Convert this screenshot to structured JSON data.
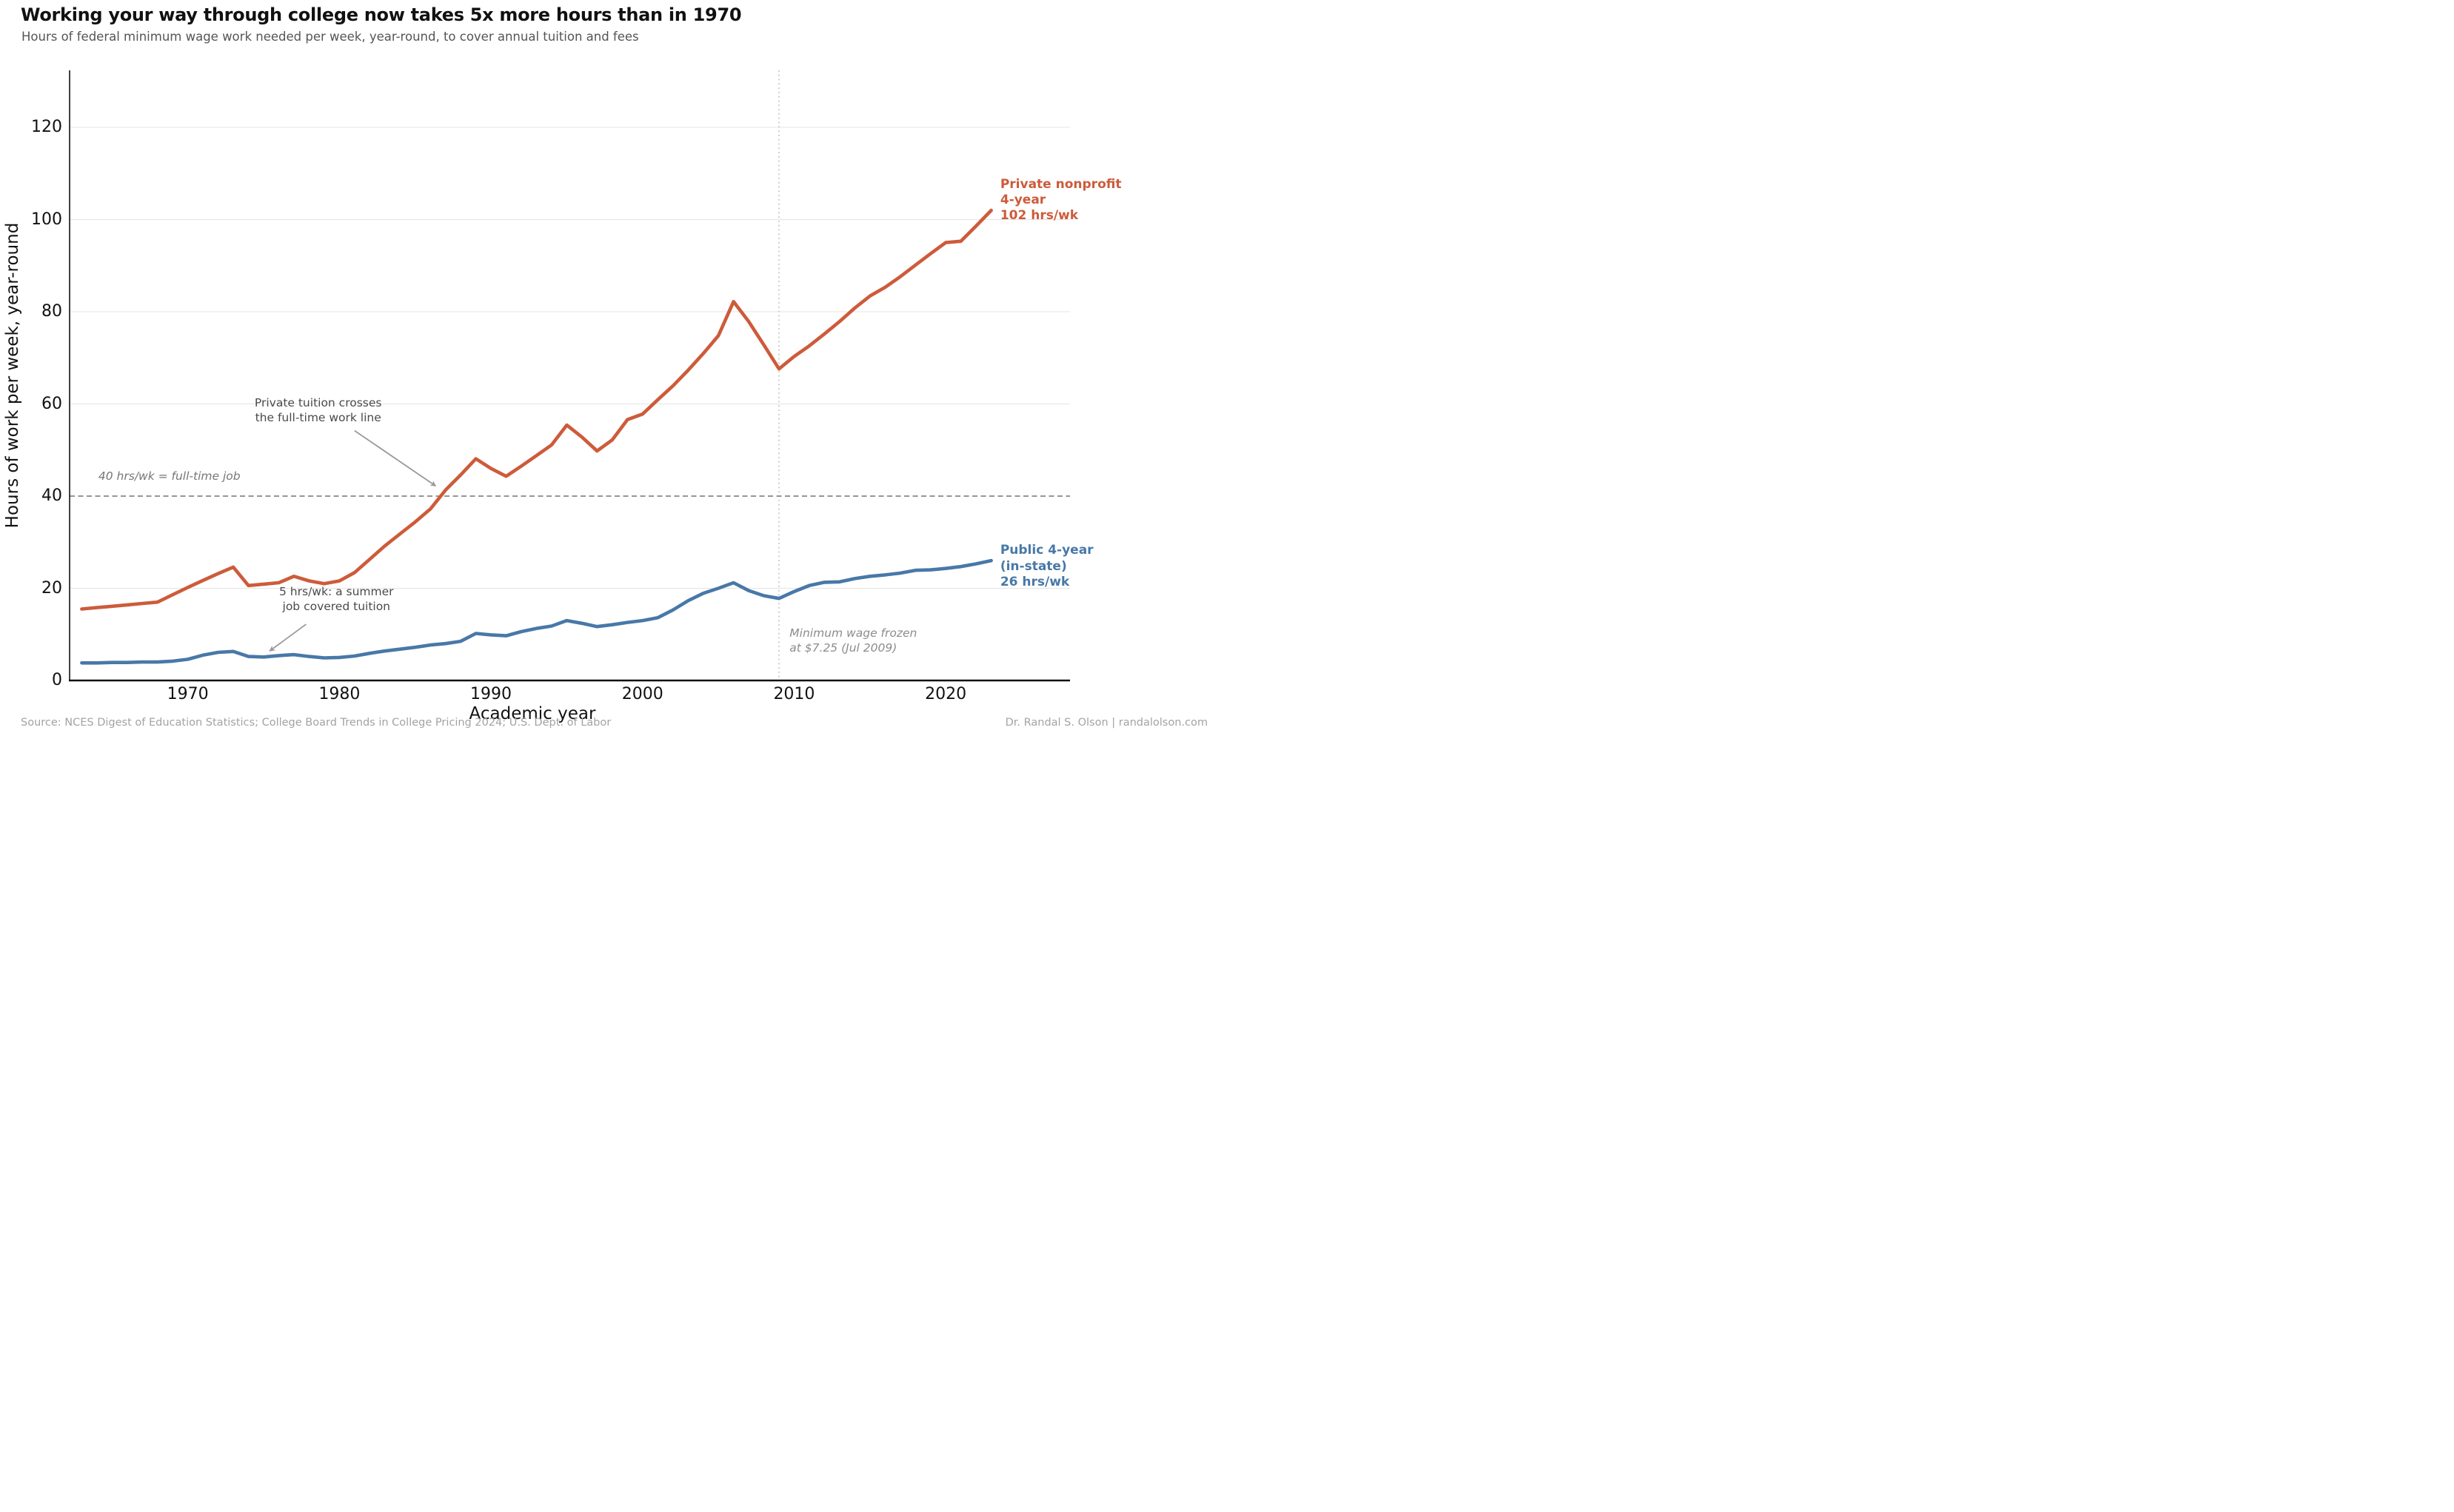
{
  "header": {
    "title": "Working your way through college now takes 5x more hours than in 1970",
    "subtitle": "Hours of federal minimum wage work needed per week, year-round, to cover annual tuition and fees"
  },
  "footer": {
    "source": "Source: NCES Digest of Education Statistics; College Board Trends in College Pricing 2024; U.S. Dept. of Labor",
    "credit": "Dr. Randal S. Olson  |  randalolson.com"
  },
  "colors": {
    "private": "#cd5b3a",
    "public": "#4878a8",
    "grid": "#e4e4e4",
    "dashed_line": "#888888",
    "dotted_line": "#c6c6c6",
    "arrow": "#999999",
    "annotation_dark": "#4a4a4a",
    "annotation_gray_italic_40": "#777777",
    "annotation_gray_italic_minwage": "#8c8c8c",
    "axis": "#111111",
    "footer_gray": "#a3a3a3"
  },
  "chart_data": {
    "type": "line",
    "title": "Working your way through college now takes 5x more hours than in 1970",
    "subtitle": "Hours of federal minimum wage work needed per week, year-round, to cover annual tuition and fees",
    "xlabel": "Academic year",
    "ylabel": "Hours of work per week, year-round",
    "x_ticks": [
      1970,
      1980,
      1990,
      2000,
      2010,
      2020
    ],
    "y_ticks": [
      0,
      20,
      40,
      60,
      80,
      100,
      120
    ],
    "xlim": [
      1962.2,
      2028.2
    ],
    "ylim": [
      0,
      132
    ],
    "grid": "horizontal-only",
    "legend_position": "end-of-line labels",
    "years": [
      1963,
      1964,
      1965,
      1966,
      1967,
      1968,
      1969,
      1970,
      1971,
      1972,
      1973,
      1974,
      1975,
      1976,
      1977,
      1978,
      1979,
      1980,
      1981,
      1982,
      1983,
      1984,
      1985,
      1986,
      1987,
      1988,
      1989,
      1990,
      1991,
      1992,
      1993,
      1994,
      1995,
      1996,
      1997,
      1998,
      1999,
      2000,
      2001,
      2002,
      2003,
      2004,
      2005,
      2006,
      2007,
      2008,
      2009,
      2010,
      2011,
      2012,
      2013,
      2014,
      2015,
      2016,
      2017,
      2018,
      2019,
      2020,
      2021,
      2022,
      2023
    ],
    "series": [
      {
        "name": "Private nonprofit 4-year",
        "color": "#cd5b3a",
        "end_label": "Private nonprofit\n4-year\n102 hrs/wk",
        "end_label_anchor": {
          "year": 2023.6,
          "value": 109.3
        },
        "values": [
          15.5,
          15.8,
          16.1,
          16.4,
          16.7,
          17.0,
          18.6,
          20.2,
          21.7,
          23.2,
          24.6,
          20.6,
          20.9,
          21.2,
          22.6,
          21.6,
          21.0,
          21.6,
          23.4,
          26.3,
          29.2,
          31.8,
          34.4,
          37.2,
          41.3,
          44.6,
          48.1,
          46.0,
          44.3,
          46.5,
          48.8,
          51.1,
          55.4,
          52.8,
          49.8,
          52.2,
          56.6,
          57.8,
          60.9,
          63.9,
          67.3,
          70.9,
          74.8,
          82.2,
          77.9,
          72.8,
          67.6,
          70.3,
          72.6,
          75.2,
          77.9,
          80.8,
          83.4,
          85.3,
          87.6,
          90.1,
          92.6,
          95.0,
          95.3,
          98.6,
          102.0
        ]
      },
      {
        "name": "Public 4-year (in-state)",
        "color": "#4878a8",
        "end_label": "Public 4-year\n(in-state)\n26 hrs/wk",
        "end_label_anchor": {
          "year": 2023.6,
          "value": 29.8
        },
        "values": [
          3.8,
          3.8,
          3.9,
          3.9,
          4.0,
          4.0,
          4.2,
          4.6,
          5.5,
          6.1,
          6.3,
          5.2,
          5.1,
          5.4,
          5.6,
          5.2,
          4.9,
          5.0,
          5.3,
          5.9,
          6.4,
          6.8,
          7.2,
          7.7,
          8.0,
          8.5,
          10.2,
          9.9,
          9.7,
          10.6,
          11.3,
          11.8,
          13.0,
          12.4,
          11.7,
          12.1,
          12.6,
          13.0,
          13.6,
          15.3,
          17.3,
          18.9,
          20.0,
          21.2,
          19.5,
          18.4,
          17.8,
          19.3,
          20.6,
          21.3,
          21.4,
          22.1,
          22.6,
          22.9,
          23.3,
          23.9,
          24.0,
          24.3,
          24.7,
          25.3,
          26.0
        ]
      }
    ],
    "reference_lines": {
      "full_time": {
        "y": 40,
        "style": "dashed",
        "label": "40 hrs/wk = full-time job",
        "label_anchor": {
          "year": 1964.1,
          "value": 45.9
        }
      },
      "min_wage_freeze": {
        "x": 2009,
        "style": "dotted",
        "label": "Minimum wage frozen\nat $7.25 (Jul 2009)",
        "label_anchor": {
          "year": 2009.7,
          "value": 11.9
        }
      }
    },
    "annotations": [
      {
        "id": "private-crosses-fulltime",
        "text": "Private tuition crosses\nthe full-time work line",
        "text_anchor": {
          "year": 1978.6,
          "value": 61.9
        },
        "arrow": {
          "from": {
            "year": 1981.0,
            "value": 54.2
          },
          "to": {
            "year": 1986.35,
            "value": 42.2
          }
        }
      },
      {
        "id": "summer-job",
        "text": "5 hrs/wk: a summer\njob covered tuition",
        "text_anchor": {
          "year": 1979.8,
          "value": 20.9
        },
        "arrow": {
          "from": {
            "year": 1977.8,
            "value": 12.2
          },
          "to": {
            "year": 1975.4,
            "value": 6.4
          }
        }
      }
    ]
  }
}
